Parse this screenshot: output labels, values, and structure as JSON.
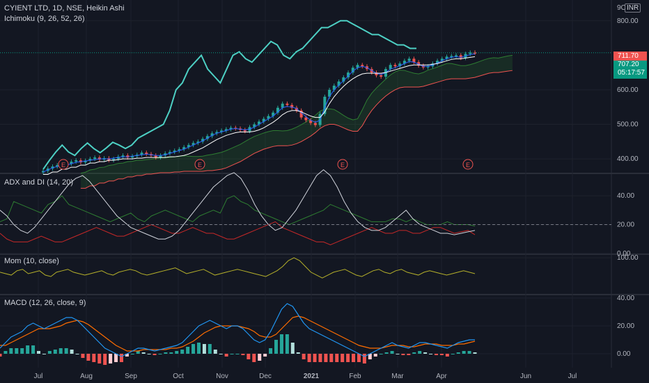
{
  "header": {
    "symbol": "CYIENT LTD, 1D, NSE, Heikin Ashi",
    "ichimoku": "Ichimoku (9, 26, 52, 26)",
    "currency": "INR",
    "currency_prefix": "9C"
  },
  "price_labels": {
    "high": "711.70",
    "last": "707.20",
    "countdown": "05:17:57"
  },
  "panes": {
    "adx": "ADX and DI (14, 20)",
    "mom": "Mom (10, close)",
    "macd": "MACD (12, 26, close, 9)"
  },
  "earnings": [
    {
      "label": "E",
      "x": 14
    },
    {
      "label": "E",
      "x": 75
    },
    {
      "label": "E",
      "x": 140
    },
    {
      "label": "E",
      "x": 215
    }
  ],
  "colors": {
    "up": "#26a69a",
    "down": "#ef5350",
    "tenkan": "#2962ff",
    "kijun": "#ffffff",
    "lagging": "#4dd0c4",
    "span_a": "#2e7d32",
    "span_b": "#ef5350",
    "adx": "#d1d4dc",
    "di_plus": "#2e7d32",
    "di_minus": "#c62828",
    "mom": "#b5b02a",
    "macd": "#2196f3",
    "signal": "#ff6d00"
  },
  "chart_data": [
    {
      "type": "candlestick",
      "name": "price",
      "x_ticks": [
        "Jul",
        "Aug",
        "Sep",
        "Oct",
        "Nov",
        "Dec",
        "2021",
        "Feb",
        "Mar",
        "Apr",
        "Jun",
        "Jul"
      ],
      "y_ticks": [
        "400.00",
        "500.00",
        "600.00",
        "800.00"
      ],
      "ylim": [
        360,
        860
      ],
      "close": [
        365,
        372,
        378,
        382,
        380,
        386,
        392,
        396,
        390,
        395,
        400,
        404,
        398,
        402,
        396,
        400,
        406,
        410,
        404,
        408,
        412,
        418,
        414,
        410,
        404,
        410,
        416,
        420,
        424,
        428,
        434,
        440,
        446,
        450,
        458,
        466,
        474,
        478,
        482,
        486,
        490,
        488,
        484,
        480,
        492,
        500,
        508,
        516,
        524,
        534,
        548,
        560,
        556,
        548,
        540,
        520,
        512,
        504,
        498,
        530,
        580,
        600,
        612,
        624,
        636,
        650,
        664,
        672,
        668,
        660,
        650,
        642,
        638,
        660,
        672,
        668,
        676,
        684,
        690,
        680,
        670,
        665,
        668,
        676,
        684,
        690,
        696,
        698,
        700,
        692,
        704,
        708,
        707
      ],
      "ha_direction": [
        1,
        1,
        1,
        1,
        0,
        1,
        1,
        1,
        0,
        1,
        1,
        1,
        0,
        1,
        0,
        1,
        1,
        1,
        0,
        1,
        1,
        1,
        0,
        0,
        0,
        1,
        1,
        1,
        1,
        1,
        1,
        1,
        1,
        1,
        1,
        1,
        1,
        1,
        1,
        1,
        1,
        0,
        0,
        0,
        1,
        1,
        1,
        1,
        1,
        1,
        1,
        1,
        0,
        0,
        0,
        0,
        0,
        0,
        0,
        1,
        1,
        1,
        1,
        1,
        1,
        1,
        1,
        1,
        0,
        0,
        0,
        0,
        0,
        1,
        1,
        0,
        1,
        1,
        1,
        0,
        0,
        0,
        1,
        1,
        1,
        1,
        1,
        1,
        1,
        0,
        1,
        1,
        0
      ],
      "tenkan": [
        362,
        368,
        374,
        378,
        380,
        382,
        386,
        390,
        392,
        394,
        396,
        398,
        400,
        400,
        400,
        402,
        404,
        406,
        406,
        408,
        410,
        412,
        414,
        412,
        410,
        410,
        412,
        416,
        420,
        424,
        428,
        434,
        440,
        446,
        452,
        460,
        468,
        474,
        478,
        482,
        486,
        488,
        486,
        484,
        486,
        492,
        500,
        508,
        516,
        524,
        536,
        548,
        552,
        550,
        546,
        534,
        522,
        512,
        506,
        512,
        548,
        580,
        600,
        614,
        626,
        640,
        654,
        664,
        668,
        664,
        656,
        648,
        644,
        650,
        660,
        664,
        670,
        676,
        682,
        680,
        674,
        668,
        668,
        672,
        678,
        684,
        690,
        694,
        696,
        694,
        698,
        702,
        704
      ],
      "kijun": [
        355,
        355,
        362,
        362,
        370,
        370,
        376,
        376,
        382,
        382,
        388,
        388,
        392,
        392,
        396,
        396,
        398,
        400,
        400,
        400,
        402,
        402,
        404,
        404,
        404,
        404,
        404,
        406,
        406,
        408,
        410,
        414,
        420,
        426,
        432,
        440,
        448,
        456,
        462,
        468,
        472,
        476,
        478,
        478,
        478,
        480,
        484,
        490,
        498,
        506,
        516,
        528,
        536,
        540,
        540,
        536,
        530,
        524,
        520,
        520,
        536,
        560,
        580,
        596,
        610,
        622,
        632,
        640,
        646,
        648,
        648,
        648,
        648,
        650,
        654,
        658,
        662,
        666,
        670,
        672,
        672,
        672,
        672,
        674,
        676,
        680,
        684,
        688,
        690,
        690,
        692,
        694,
        696
      ],
      "lagging": [
        370,
        396,
        420,
        440,
        420,
        410,
        430,
        446,
        430,
        418,
        432,
        448,
        440,
        430,
        440,
        460,
        470,
        480,
        490,
        500,
        540,
        600,
        620,
        660,
        680,
        700,
        660,
        640,
        620,
        660,
        700,
        710,
        690,
        680,
        700,
        720,
        740,
        730,
        700,
        690,
        710,
        720,
        740,
        760,
        780,
        780,
        790,
        800,
        800,
        790,
        780,
        770,
        760,
        760,
        750,
        740,
        730,
        730,
        720,
        720
      ],
      "span_a": [
        null,
        null,
        null,
        null,
        null,
        null,
        null,
        null,
        null,
        null,
        null,
        null,
        null,
        null,
        null,
        null,
        null,
        null,
        null,
        null,
        null,
        null,
        null,
        null,
        null,
        null,
        null,
        null,
        null,
        null,
        null,
        null,
        null,
        null,
        null,
        null,
        null,
        null,
        null,
        null,
        null,
        null,
        null,
        null,
        null,
        null,
        null,
        null,
        null,
        null,
        null,
        null,
        null,
        null,
        null,
        null,
        null,
        null,
        null,
        null,
        null,
        null,
        null,
        null,
        null,
        null,
        null,
        null,
        null,
        null,
        null,
        null,
        null,
        null,
        null,
        null,
        null,
        null,
        null,
        null,
        null,
        null,
        null,
        null,
        null,
        null,
        null,
        null,
        null,
        null,
        null,
        null,
        null
      ]
    },
    {
      "type": "line",
      "name": "adx",
      "y_ticks": [
        "0.00",
        "20.00",
        "40.00"
      ],
      "ylim": [
        0,
        55
      ],
      "adx": [
        30,
        26,
        20,
        16,
        14,
        18,
        24,
        30,
        36,
        42,
        48,
        52,
        54,
        50,
        44,
        38,
        32,
        26,
        22,
        18,
        16,
        14,
        12,
        10,
        10,
        12,
        16,
        22,
        28,
        34,
        40,
        46,
        50,
        54,
        56,
        52,
        44,
        34,
        26,
        20,
        16,
        18,
        24,
        30,
        38,
        46,
        54,
        58,
        54,
        46,
        36,
        28,
        22,
        18,
        16,
        16,
        18,
        22,
        26,
        30,
        24,
        20,
        18,
        16,
        14,
        14,
        13,
        14,
        15,
        16
      ],
      "di_plus": [
        22,
        24,
        36,
        34,
        32,
        30,
        28,
        34,
        36,
        40,
        34,
        32,
        30,
        28,
        26,
        24,
        22,
        24,
        26,
        28,
        24,
        22,
        26,
        28,
        30,
        28,
        26,
        24,
        22,
        26,
        28,
        30,
        28,
        38,
        40,
        36,
        34,
        30,
        28,
        26,
        24,
        22,
        20,
        22,
        24,
        26,
        28,
        30,
        34,
        32,
        30,
        28,
        26,
        24,
        22,
        22,
        22,
        24,
        24,
        22,
        24,
        22,
        20,
        20,
        20,
        22,
        20,
        20,
        20,
        19
      ],
      "di_minus": [
        14,
        10,
        8,
        8,
        8,
        10,
        12,
        10,
        8,
        8,
        10,
        12,
        14,
        16,
        18,
        16,
        14,
        12,
        12,
        14,
        16,
        18,
        20,
        18,
        16,
        14,
        14,
        16,
        18,
        16,
        14,
        14,
        12,
        10,
        10,
        12,
        14,
        16,
        18,
        20,
        22,
        18,
        16,
        14,
        12,
        10,
        8,
        8,
        6,
        8,
        10,
        12,
        14,
        16,
        18,
        16,
        14,
        14,
        16,
        16,
        14,
        14,
        16,
        18,
        18,
        16,
        14,
        15,
        16,
        13
      ]
    },
    {
      "type": "line",
      "name": "mom",
      "y_ticks": [
        "100.00"
      ],
      "ylim": [
        -150,
        120
      ],
      "values": [
        0,
        -10,
        -20,
        10,
        20,
        -10,
        0,
        10,
        -20,
        -30,
        0,
        10,
        20,
        0,
        -10,
        -20,
        -10,
        0,
        10,
        -10,
        -20,
        0,
        10,
        20,
        10,
        -10,
        -20,
        -10,
        0,
        10,
        20,
        30,
        10,
        -10,
        0,
        10,
        20,
        0,
        -20,
        -10,
        0,
        10,
        20,
        10,
        0,
        -10,
        -20,
        -30,
        -10,
        10,
        40,
        80,
        100,
        80,
        40,
        0,
        -20,
        -40,
        -20,
        0,
        10,
        20,
        0,
        -20,
        -30,
        -10,
        10,
        20,
        0,
        -10,
        10,
        20,
        0,
        -10,
        -20,
        0,
        10,
        0,
        -10,
        -20,
        -10,
        0,
        10,
        0,
        -10
      ]
    },
    {
      "type": "line+bar",
      "name": "macd",
      "y_ticks": [
        "0.00",
        "20.00",
        "40.00"
      ],
      "ylim": [
        -10,
        42
      ],
      "macd": [
        4,
        8,
        12,
        14,
        16,
        20,
        22,
        20,
        18,
        20,
        22,
        24,
        26,
        26,
        24,
        20,
        16,
        12,
        8,
        4,
        2,
        0,
        -2,
        0,
        2,
        4,
        4,
        3,
        2,
        3,
        4,
        5,
        6,
        8,
        12,
        16,
        20,
        22,
        24,
        22,
        20,
        18,
        20,
        20,
        18,
        14,
        10,
        8,
        10,
        16,
        24,
        32,
        36,
        34,
        28,
        22,
        18,
        16,
        14,
        12,
        10,
        8,
        6,
        4,
        2,
        0,
        -2,
        0,
        2,
        4,
        6,
        8,
        6,
        5,
        4,
        6,
        8,
        8,
        7,
        6,
        5,
        4,
        6,
        8,
        9,
        10,
        10
      ],
      "signal": [
        6,
        6,
        8,
        10,
        12,
        14,
        16,
        18,
        18,
        18,
        19,
        20,
        22,
        23,
        24,
        23,
        21,
        18,
        15,
        12,
        9,
        6,
        4,
        2,
        2,
        2,
        3,
        3,
        3,
        3,
        3,
        4,
        4,
        5,
        7,
        9,
        12,
        15,
        17,
        19,
        20,
        20,
        20,
        20,
        19,
        18,
        16,
        13,
        12,
        12,
        14,
        18,
        22,
        26,
        27,
        26,
        24,
        22,
        20,
        18,
        16,
        14,
        12,
        10,
        8,
        6,
        5,
        4,
        4,
        4,
        5,
        6,
        6,
        6,
        5,
        5,
        6,
        7,
        7,
        7,
        6,
        6,
        6,
        7,
        7,
        8,
        9
      ]
    }
  ]
}
